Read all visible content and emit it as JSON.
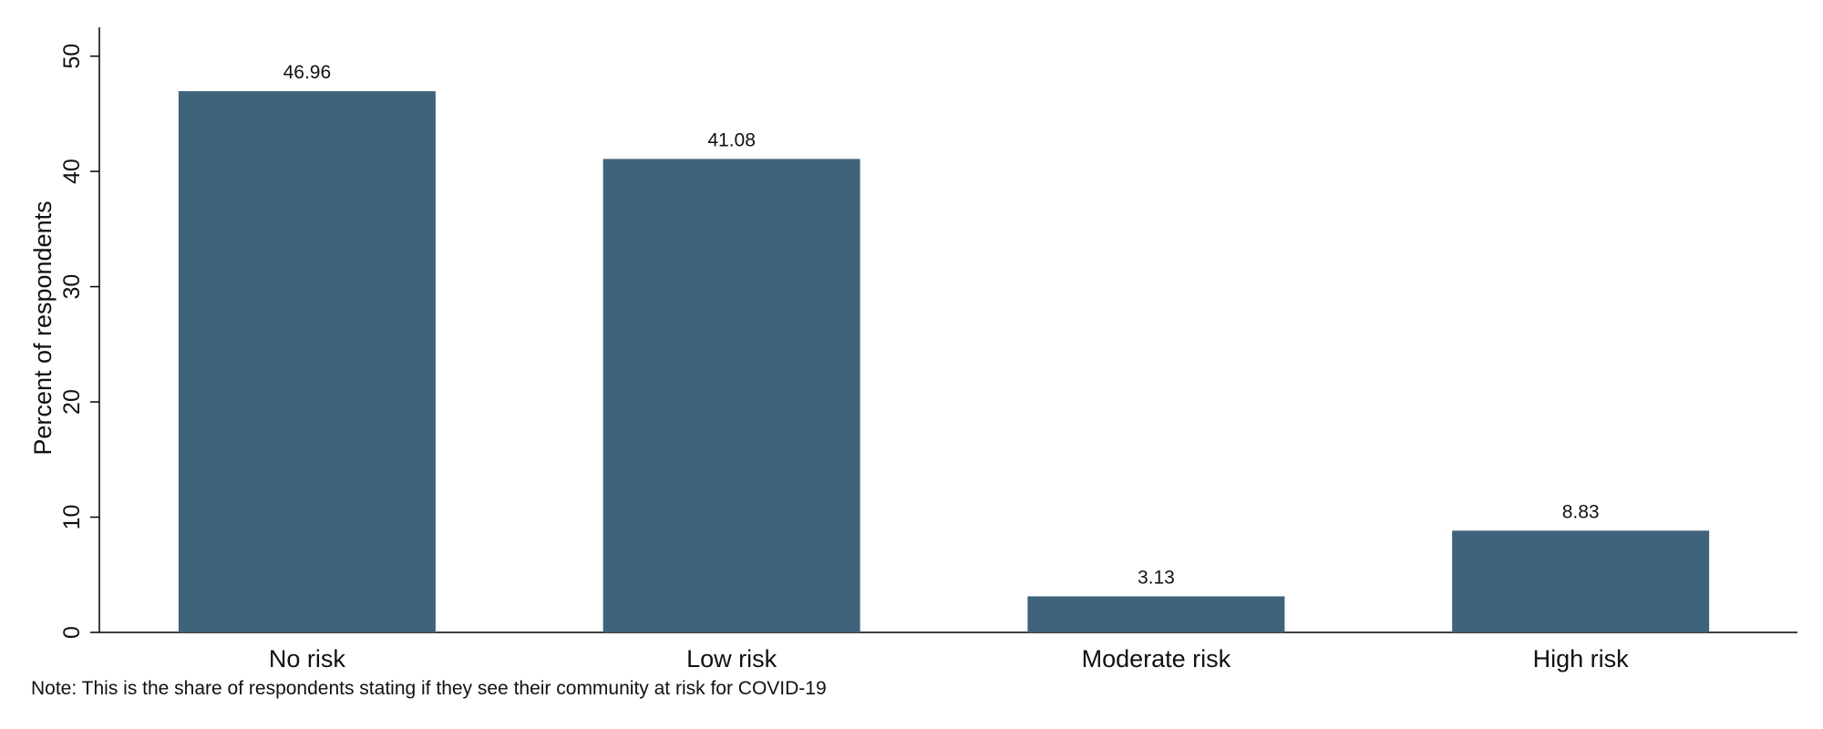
{
  "chart_data": {
    "type": "bar",
    "categories": [
      "No risk",
      "Low risk",
      "Moderate risk",
      "High risk"
    ],
    "values": [
      46.96,
      41.08,
      3.13,
      8.83
    ],
    "value_labels": [
      "46.96",
      "41.08",
      "3.13",
      "8.83"
    ],
    "title": "",
    "xlabel": "",
    "ylabel": "Percent of respondents",
    "ylim": [
      0,
      50
    ],
    "yticks": [
      0,
      10,
      20,
      30,
      40,
      50
    ],
    "grid": false,
    "bar_color": "#3f637b",
    "note": "Note: This is the share of respondents stating if they see their community at risk for COVID-19"
  }
}
